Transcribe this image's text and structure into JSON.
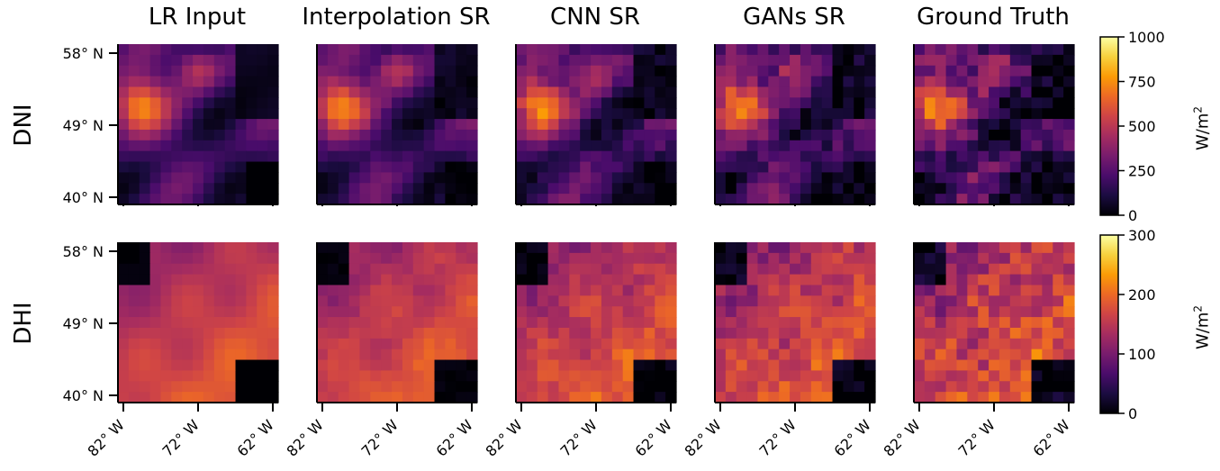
{
  "chart_data": {
    "type": "heatmap",
    "columns": [
      "LR Input",
      "Interpolation SR",
      "CNN SR",
      "GANs SR",
      "Ground Truth"
    ],
    "rows": [
      {
        "label": "DNI",
        "unit": "W/m",
        "unit_sup": "2",
        "colorbar_ticks": [
          "0",
          "250",
          "500",
          "750",
          "1000"
        ],
        "colorbar_values": [
          0,
          250,
          500,
          750,
          1000
        ],
        "vmin": 0,
        "vmax": 1000
      },
      {
        "label": "DHI",
        "unit": "W/m",
        "unit_sup": "2",
        "colorbar_ticks": [
          "0",
          "100",
          "200",
          "300"
        ],
        "colorbar_values": [
          0,
          100,
          200,
          300
        ],
        "vmin": 0,
        "vmax": 300
      }
    ],
    "lat_ticks": [
      "58° N",
      "49° N",
      "40° N"
    ],
    "lat_values": [
      58,
      49,
      40
    ],
    "lon_ticks": [
      "82° W",
      "72° W",
      "62° W"
    ],
    "lon_values": [
      -82,
      -72,
      -62
    ],
    "colormap": "inferno-like (black → purple → orange → yellow)",
    "colormap_stops": [
      "#000004",
      "#1b0c41",
      "#4a0c6b",
      "#781c6d",
      "#a52c60",
      "#cf4446",
      "#ed6925",
      "#fb9b06",
      "#f7d13d",
      "#fcffa4"
    ]
  }
}
